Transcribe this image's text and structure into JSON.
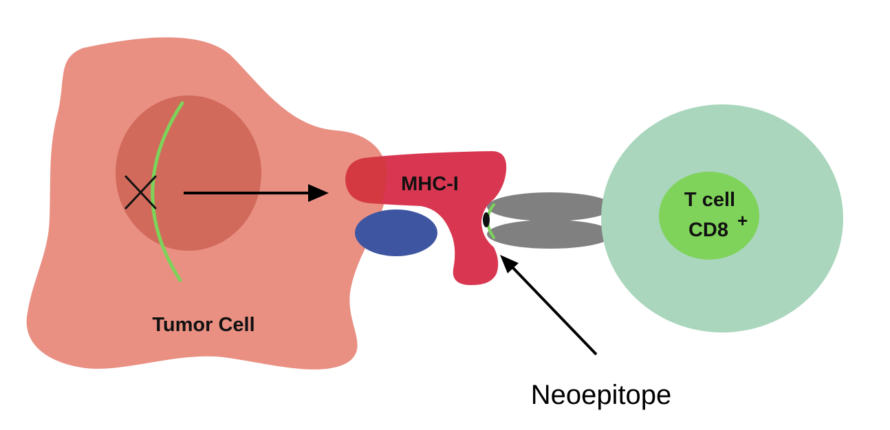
{
  "labels": {
    "tumor_cell": "Tumor Cell",
    "mhc": "MHC-I",
    "tcell_line1": "T cell",
    "tcell_line2": "CD8",
    "tcell_sup": "+",
    "neoepitope": "Neoepitope"
  },
  "colors": {
    "tumor_cell": "#E99083",
    "nucleus": "#D16A5B",
    "mutation_strand": "#7DD35A",
    "mhc": "#D93751",
    "beta2m": "#3E55A1",
    "tcr": "#808080",
    "tcell": "#A9D6BC",
    "tcell_nucleus": "#7FD35A",
    "arrow": "#000000"
  },
  "icons": {
    "mutation_marker": "x-mark-icon"
  }
}
